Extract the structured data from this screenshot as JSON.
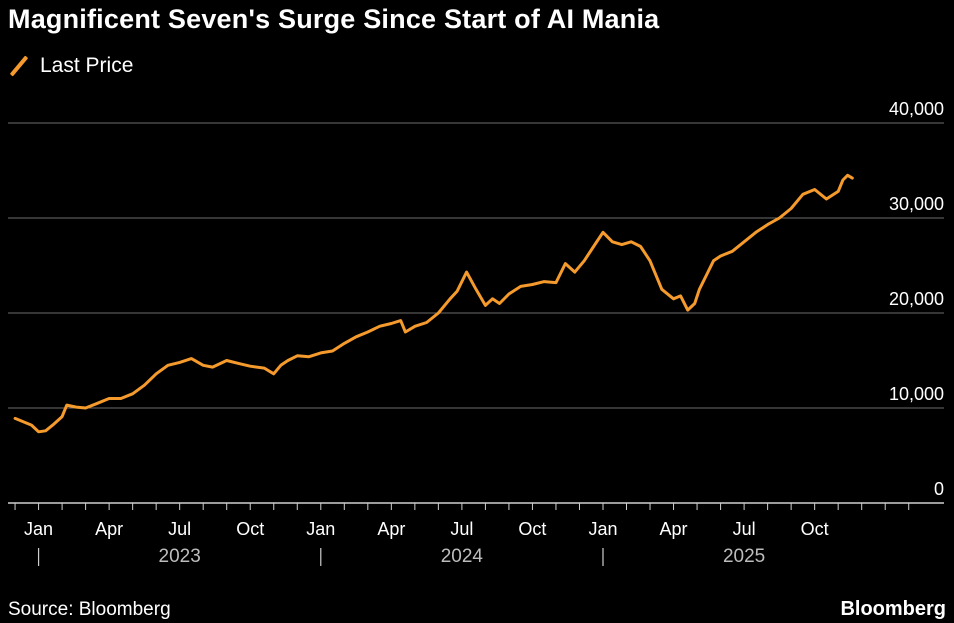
{
  "header": {
    "title": "Magnificent Seven's Surge Since Start of AI Mania"
  },
  "legend": {
    "label": "Last Price",
    "color": "#f59a2c"
  },
  "footer": {
    "source": "Source: Bloomberg",
    "brand": "Bloomberg"
  },
  "chart_data": {
    "type": "line",
    "title": "Magnificent Seven's Surge Since Start of AI Mania",
    "xlabel": "",
    "ylabel": "",
    "ylim": [
      0,
      40000
    ],
    "y_ticks": [
      "40,000",
      "30,000",
      "20,000",
      "10,000",
      "0"
    ],
    "y_tick_values": [
      40000,
      30000,
      20000,
      10000,
      0
    ],
    "x_tick_labels": [
      "Jan",
      "Apr",
      "Jul",
      "Oct",
      "Jan",
      "Apr",
      "Jul",
      "Oct",
      "Jan",
      "Apr",
      "Jul",
      "Oct"
    ],
    "x_tick_months": [
      0,
      3,
      6,
      9,
      12,
      15,
      18,
      21,
      24,
      27,
      30,
      33
    ],
    "year_labels": [
      "2023",
      "2024",
      "2025"
    ],
    "x_range_months": [
      -1.3,
      38.5
    ],
    "grid": true,
    "legend_position": "top-left",
    "series": [
      {
        "name": "Last Price",
        "color": "#f59a2c",
        "x_months": [
          -1.0,
          -0.6,
          -0.3,
          0.0,
          0.3,
          0.6,
          1.0,
          1.2,
          1.6,
          2.0,
          2.5,
          3.0,
          3.5,
          4.0,
          4.5,
          5.0,
          5.5,
          6.0,
          6.5,
          7.0,
          7.4,
          8.0,
          8.5,
          9.0,
          9.6,
          10.0,
          10.3,
          10.6,
          11.0,
          11.5,
          12.0,
          12.5,
          13.0,
          13.5,
          14.0,
          14.5,
          15.0,
          15.4,
          15.6,
          16.0,
          16.5,
          17.0,
          17.5,
          17.8,
          18.2,
          18.6,
          19.0,
          19.3,
          19.6,
          20.0,
          20.5,
          21.0,
          21.5,
          22.0,
          22.4,
          22.8,
          23.2,
          23.6,
          24.0,
          24.4,
          24.8,
          25.2,
          25.6,
          26.0,
          26.5,
          27.0,
          27.3,
          27.6,
          27.9,
          28.1,
          28.4,
          28.7,
          29.0,
          29.5,
          30.0,
          30.5,
          31.0,
          31.5,
          32.0,
          32.5,
          33.0,
          33.5,
          34.0,
          34.2,
          34.4,
          34.6
        ],
        "values": [
          8900,
          8500,
          8200,
          7500,
          7600,
          8200,
          9100,
          10300,
          10100,
          10000,
          10500,
          11000,
          11000,
          11500,
          12400,
          13600,
          14500,
          14800,
          15200,
          14500,
          14300,
          15000,
          14700,
          14400,
          14200,
          13600,
          14500,
          15000,
          15500,
          15400,
          15800,
          16000,
          16800,
          17500,
          18000,
          18600,
          18900,
          19200,
          18000,
          18600,
          19000,
          20000,
          21500,
          22300,
          24300,
          22500,
          20800,
          21500,
          21000,
          22000,
          22800,
          23000,
          23300,
          23200,
          25200,
          24300,
          25500,
          27000,
          28500,
          27500,
          27200,
          27500,
          27000,
          25500,
          22500,
          21500,
          21800,
          20300,
          21000,
          22500,
          24000,
          25500,
          26000,
          26500,
          27500,
          28500,
          29300,
          30000,
          31000,
          32500,
          33000,
          32000,
          32800,
          34000,
          34500,
          34200
        ]
      }
    ]
  }
}
